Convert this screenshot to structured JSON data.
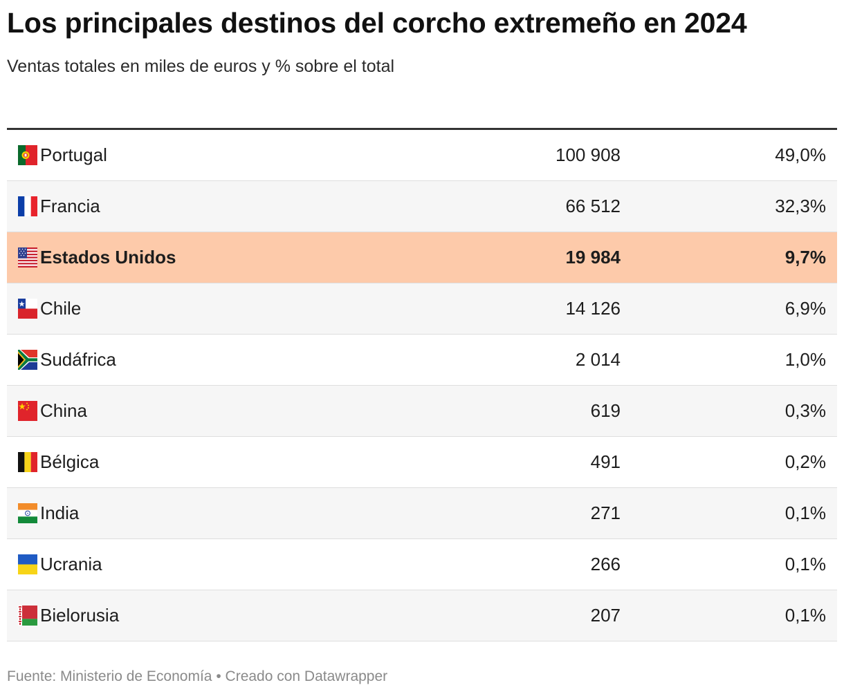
{
  "title": "Los principales destinos del corcho extremeño en 2024",
  "subtitle": "Ventas totales en miles de euros y % sobre el total",
  "footer": {
    "source": "Fuente: Ministerio de Economía",
    "separator": "•",
    "credit": "Creado con Datawrapper"
  },
  "colors": {
    "highlight_row": "#fdcaaa",
    "alt_row": "#f6f6f6",
    "header_rule": "#333333"
  },
  "chart_data": {
    "type": "table",
    "title": "Los principales destinos del corcho extremeño en 2024",
    "subtitle": "Ventas totales en miles de euros y % sobre el total",
    "columns": [
      "",
      "",
      ""
    ],
    "rows": [
      {
        "country": "Portugal",
        "flag": "portugal-flag-icon",
        "value": "100 908",
        "value_num": 100908,
        "pct": "49,0%",
        "pct_num": 49.0,
        "highlight": false
      },
      {
        "country": "Francia",
        "flag": "france-flag-icon",
        "value": "66 512",
        "value_num": 66512,
        "pct": "32,3%",
        "pct_num": 32.3,
        "highlight": false
      },
      {
        "country": "Estados Unidos",
        "flag": "usa-flag-icon",
        "value": "19 984",
        "value_num": 19984,
        "pct": "9,7%",
        "pct_num": 9.7,
        "highlight": true
      },
      {
        "country": "Chile",
        "flag": "chile-flag-icon",
        "value": "14 126",
        "value_num": 14126,
        "pct": "6,9%",
        "pct_num": 6.9,
        "highlight": false
      },
      {
        "country": "Sudáfrica",
        "flag": "south-africa-flag-icon",
        "value": "2 014",
        "value_num": 2014,
        "pct": "1,0%",
        "pct_num": 1.0,
        "highlight": false
      },
      {
        "country": "China",
        "flag": "china-flag-icon",
        "value": "619",
        "value_num": 619,
        "pct": "0,3%",
        "pct_num": 0.3,
        "highlight": false
      },
      {
        "country": "Bélgica",
        "flag": "belgium-flag-icon",
        "value": "491",
        "value_num": 491,
        "pct": "0,2%",
        "pct_num": 0.2,
        "highlight": false
      },
      {
        "country": "India",
        "flag": "india-flag-icon",
        "value": "271",
        "value_num": 271,
        "pct": "0,1%",
        "pct_num": 0.1,
        "highlight": false
      },
      {
        "country": "Ucrania",
        "flag": "ukraine-flag-icon",
        "value": "266",
        "value_num": 266,
        "pct": "0,1%",
        "pct_num": 0.1,
        "highlight": false
      },
      {
        "country": "Bielorusia",
        "flag": "belarus-flag-icon",
        "value": "207",
        "value_num": 207,
        "pct": "0,1%",
        "pct_num": 0.1,
        "highlight": false
      }
    ]
  }
}
